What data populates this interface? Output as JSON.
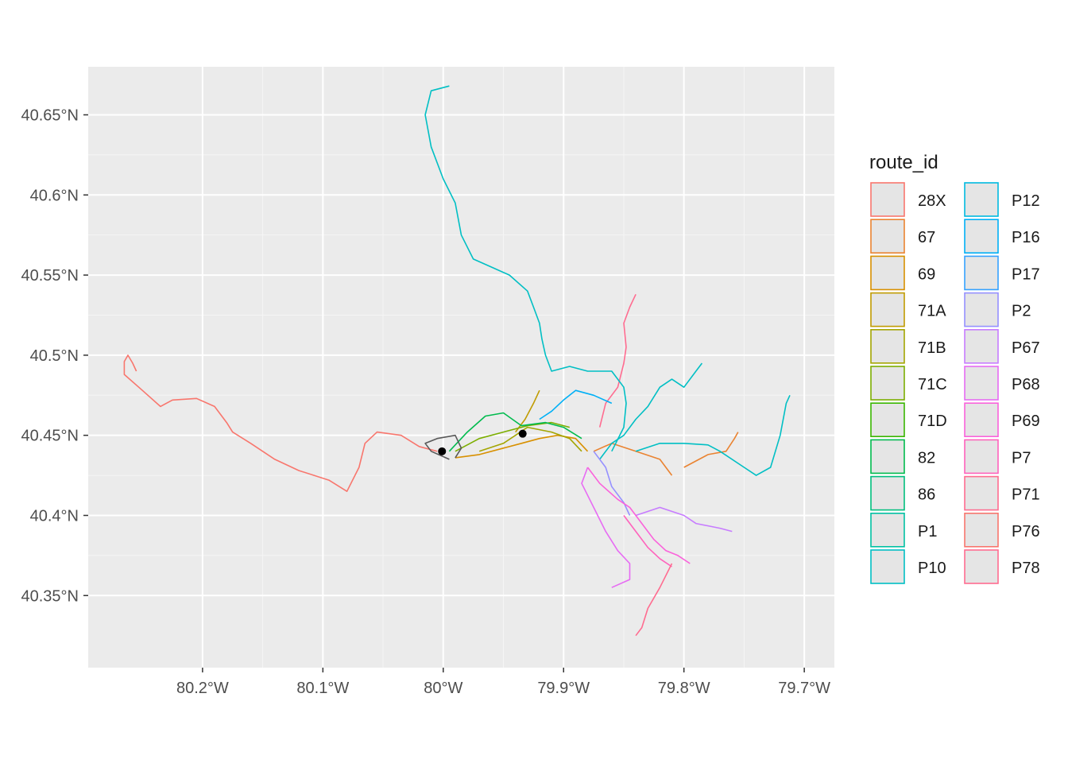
{
  "chart_data": {
    "type": "map",
    "title": "",
    "xlabel": "",
    "ylabel": "",
    "xlim": [
      -80.295,
      -79.675
    ],
    "ylim": [
      40.305,
      40.68
    ],
    "grid": true,
    "x_ticks": [
      {
        "value": -80.2,
        "label": "80.2°W"
      },
      {
        "value": -80.1,
        "label": "80.1°W"
      },
      {
        "value": -80.0,
        "label": "80°W"
      },
      {
        "value": -79.9,
        "label": "79.9°W"
      },
      {
        "value": -79.8,
        "label": "79.8°W"
      },
      {
        "value": -79.7,
        "label": "79.7°W"
      }
    ],
    "y_ticks": [
      {
        "value": 40.35,
        "label": "40.35°N"
      },
      {
        "value": 40.4,
        "label": "40.4°N"
      },
      {
        "value": 40.45,
        "label": "40.45°N"
      },
      {
        "value": 40.5,
        "label": "40.5°N"
      },
      {
        "value": 40.55,
        "label": "40.55°N"
      },
      {
        "value": 40.6,
        "label": "40.6°N"
      },
      {
        "value": 40.65,
        "label": "40.65°N"
      }
    ],
    "legend": {
      "title": "route_id",
      "position": "right",
      "columns": 2,
      "entries": [
        {
          "label": "28X",
          "color": "#F8766D"
        },
        {
          "label": "67",
          "color": "#EA8331"
        },
        {
          "label": "69",
          "color": "#D89000"
        },
        {
          "label": "71A",
          "color": "#C09B00"
        },
        {
          "label": "71B",
          "color": "#A3A500"
        },
        {
          "label": "71C",
          "color": "#7CAE00"
        },
        {
          "label": "71D",
          "color": "#39B600"
        },
        {
          "label": "82",
          "color": "#00BB4E"
        },
        {
          "label": "86",
          "color": "#00BF7D"
        },
        {
          "label": "P1",
          "color": "#00C1A3"
        },
        {
          "label": "P10",
          "color": "#00BFC4"
        },
        {
          "label": "P12",
          "color": "#00BAE0"
        },
        {
          "label": "P16",
          "color": "#00B0F6"
        },
        {
          "label": "P17",
          "color": "#35A2FF"
        },
        {
          "label": "P2",
          "color": "#9590FF"
        },
        {
          "label": "P67",
          "color": "#C77CFF"
        },
        {
          "label": "P68",
          "color": "#E76BF3"
        },
        {
          "label": "P69",
          "color": "#FA62DB"
        },
        {
          "label": "P7",
          "color": "#FF62BC"
        },
        {
          "label": "P71",
          "color": "#FF6C90"
        },
        {
          "label": "P76",
          "color": "#F8766D"
        },
        {
          "label": "P78",
          "color": "#FF6C90"
        }
      ]
    },
    "series": [
      {
        "color": "#F8766D",
        "points": [
          [
            -80.005,
            40.44
          ],
          [
            -80.02,
            40.443
          ],
          [
            -80.035,
            40.45
          ],
          [
            -80.055,
            40.452
          ],
          [
            -80.065,
            40.445
          ],
          [
            -80.07,
            40.43
          ],
          [
            -80.08,
            40.415
          ],
          [
            -80.095,
            40.422
          ],
          [
            -80.12,
            40.428
          ],
          [
            -80.14,
            40.435
          ],
          [
            -80.16,
            40.445
          ],
          [
            -80.175,
            40.452
          ],
          [
            -80.18,
            40.458
          ],
          [
            -80.19,
            40.468
          ],
          [
            -80.205,
            40.473
          ],
          [
            -80.225,
            40.472
          ],
          [
            -80.235,
            40.468
          ],
          [
            -80.25,
            40.478
          ],
          [
            -80.265,
            40.488
          ],
          [
            -80.265,
            40.496
          ],
          [
            -80.262,
            40.5
          ],
          [
            -80.258,
            40.495
          ],
          [
            -80.255,
            40.49
          ]
        ]
      },
      {
        "color": "#FF6C90",
        "points": [
          [
            -79.87,
            40.455
          ],
          [
            -79.865,
            40.47
          ],
          [
            -79.855,
            40.48
          ],
          [
            -79.85,
            40.495
          ],
          [
            -79.848,
            40.505
          ],
          [
            -79.85,
            40.52
          ],
          [
            -79.845,
            40.53
          ],
          [
            -79.84,
            40.538
          ]
        ]
      },
      {
        "color": "#EA8331",
        "points": [
          [
            -79.875,
            40.44
          ],
          [
            -79.86,
            40.445
          ],
          [
            -79.84,
            40.44
          ],
          [
            -79.82,
            40.435
          ],
          [
            -79.81,
            40.425
          ]
        ]
      },
      {
        "color": "#EA8331",
        "points": [
          [
            -79.8,
            40.43
          ],
          [
            -79.78,
            40.438
          ],
          [
            -79.765,
            40.44
          ],
          [
            -79.758,
            40.448
          ],
          [
            -79.755,
            40.452
          ]
        ]
      },
      {
        "color": "#D89000",
        "points": [
          [
            -79.99,
            40.436
          ],
          [
            -79.97,
            40.438
          ],
          [
            -79.95,
            40.442
          ],
          [
            -79.935,
            40.445
          ],
          [
            -79.92,
            40.448
          ],
          [
            -79.905,
            40.45
          ],
          [
            -79.89,
            40.448
          ],
          [
            -79.88,
            40.44
          ]
        ]
      },
      {
        "color": "#C09B00",
        "points": [
          [
            -79.94,
            40.452
          ],
          [
            -79.932,
            40.46
          ],
          [
            -79.925,
            40.47
          ],
          [
            -79.92,
            40.478
          ]
        ]
      },
      {
        "color": "#A3A500",
        "points": [
          [
            -79.97,
            40.44
          ],
          [
            -79.95,
            40.445
          ],
          [
            -79.93,
            40.455
          ],
          [
            -79.91,
            40.452
          ],
          [
            -79.895,
            40.448
          ],
          [
            -79.885,
            40.44
          ]
        ]
      },
      {
        "color": "#7CAE00",
        "points": [
          [
            -79.99,
            40.44
          ],
          [
            -79.97,
            40.448
          ],
          [
            -79.95,
            40.452
          ],
          [
            -79.93,
            40.456
          ],
          [
            -79.91,
            40.458
          ],
          [
            -79.895,
            40.455
          ]
        ]
      },
      {
        "color": "#00BB4E",
        "points": [
          [
            -79.995,
            40.44
          ],
          [
            -79.98,
            40.452
          ],
          [
            -79.965,
            40.462
          ],
          [
            -79.95,
            40.464
          ],
          [
            -79.935,
            40.456
          ],
          [
            -79.915,
            40.458
          ],
          [
            -79.9,
            40.455
          ],
          [
            -79.885,
            40.448
          ]
        ]
      },
      {
        "color": "#00BFC4",
        "points": [
          [
            -79.87,
            40.435
          ],
          [
            -79.86,
            40.445
          ],
          [
            -79.85,
            40.45
          ],
          [
            -79.84,
            40.46
          ],
          [
            -79.83,
            40.468
          ],
          [
            -79.82,
            40.48
          ],
          [
            -79.81,
            40.485
          ],
          [
            -79.8,
            40.48
          ],
          [
            -79.79,
            40.49
          ],
          [
            -79.785,
            40.495
          ]
        ]
      },
      {
        "color": "#00BFC4",
        "points": [
          [
            -79.84,
            40.44
          ],
          [
            -79.82,
            40.445
          ],
          [
            -79.8,
            40.445
          ],
          [
            -79.78,
            40.444
          ],
          [
            -79.77,
            40.44
          ],
          [
            -79.75,
            40.43
          ],
          [
            -79.74,
            40.425
          ],
          [
            -79.728,
            40.43
          ],
          [
            -79.72,
            40.45
          ],
          [
            -79.715,
            40.47
          ],
          [
            -79.712,
            40.475
          ]
        ]
      },
      {
        "color": "#00BFC4",
        "points": [
          [
            -79.86,
            40.44
          ],
          [
            -79.85,
            40.455
          ],
          [
            -79.848,
            40.47
          ],
          [
            -79.85,
            40.48
          ],
          [
            -79.86,
            40.49
          ],
          [
            -79.88,
            40.49
          ],
          [
            -79.895,
            40.493
          ],
          [
            -79.91,
            40.49
          ],
          [
            -79.915,
            40.5
          ],
          [
            -79.918,
            40.51
          ],
          [
            -79.92,
            40.52
          ],
          [
            -79.925,
            40.53
          ],
          [
            -79.93,
            40.54
          ],
          [
            -79.945,
            40.55
          ],
          [
            -79.96,
            40.555
          ],
          [
            -79.975,
            40.56
          ],
          [
            -79.985,
            40.575
          ],
          [
            -79.99,
            40.595
          ],
          [
            -80.0,
            40.61
          ],
          [
            -80.01,
            40.63
          ],
          [
            -80.015,
            40.65
          ],
          [
            -80.01,
            40.665
          ],
          [
            -79.995,
            40.668
          ]
        ]
      },
      {
        "color": "#00B0F6",
        "points": [
          [
            -79.92,
            40.46
          ],
          [
            -79.91,
            40.465
          ],
          [
            -79.9,
            40.472
          ],
          [
            -79.89,
            40.478
          ],
          [
            -79.875,
            40.475
          ],
          [
            -79.86,
            40.47
          ]
        ]
      },
      {
        "color": "#9590FF",
        "points": [
          [
            -79.875,
            40.44
          ],
          [
            -79.865,
            40.43
          ],
          [
            -79.86,
            40.418
          ],
          [
            -79.85,
            40.408
          ],
          [
            -79.845,
            40.4
          ]
        ]
      },
      {
        "color": "#C77CFF",
        "points": [
          [
            -79.84,
            40.4
          ],
          [
            -79.82,
            40.405
          ],
          [
            -79.8,
            40.4
          ],
          [
            -79.79,
            40.395
          ],
          [
            -79.77,
            40.392
          ],
          [
            -79.76,
            40.39
          ]
        ]
      },
      {
        "color": "#E76BF3",
        "points": [
          [
            -79.88,
            40.43
          ],
          [
            -79.885,
            40.42
          ],
          [
            -79.875,
            40.405
          ],
          [
            -79.865,
            40.39
          ],
          [
            -79.855,
            40.378
          ],
          [
            -79.845,
            40.37
          ],
          [
            -79.845,
            40.36
          ],
          [
            -79.86,
            40.355
          ]
        ]
      },
      {
        "color": "#FA62DB",
        "points": [
          [
            -79.88,
            40.43
          ],
          [
            -79.87,
            40.42
          ],
          [
            -79.855,
            40.41
          ],
          [
            -79.845,
            40.405
          ],
          [
            -79.835,
            40.395
          ],
          [
            -79.825,
            40.385
          ],
          [
            -79.815,
            40.378
          ],
          [
            -79.805,
            40.375
          ],
          [
            -79.795,
            40.37
          ]
        ]
      },
      {
        "color": "#FF62BC",
        "points": [
          [
            -79.85,
            40.4
          ],
          [
            -79.84,
            40.39
          ],
          [
            -79.83,
            40.38
          ],
          [
            -79.82,
            40.373
          ],
          [
            -79.81,
            40.368
          ]
        ]
      },
      {
        "color": "#FF6C90",
        "points": [
          [
            -79.81,
            40.37
          ],
          [
            -79.82,
            40.355
          ],
          [
            -79.83,
            40.342
          ],
          [
            -79.835,
            40.33
          ],
          [
            -79.84,
            40.325
          ]
        ]
      },
      {
        "color": "#595959",
        "points": [
          [
            -79.995,
            40.435
          ],
          [
            -80.01,
            40.44
          ],
          [
            -80.015,
            40.445
          ],
          [
            -80.005,
            40.448
          ],
          [
            -79.99,
            40.45
          ],
          [
            -79.985,
            40.442
          ],
          [
            -79.99,
            40.436
          ]
        ]
      }
    ],
    "markers": [
      {
        "x": -79.934,
        "y": 40.451,
        "color": "#000000"
      },
      {
        "x": -80.001,
        "y": 40.44,
        "color": "#000000"
      }
    ]
  }
}
